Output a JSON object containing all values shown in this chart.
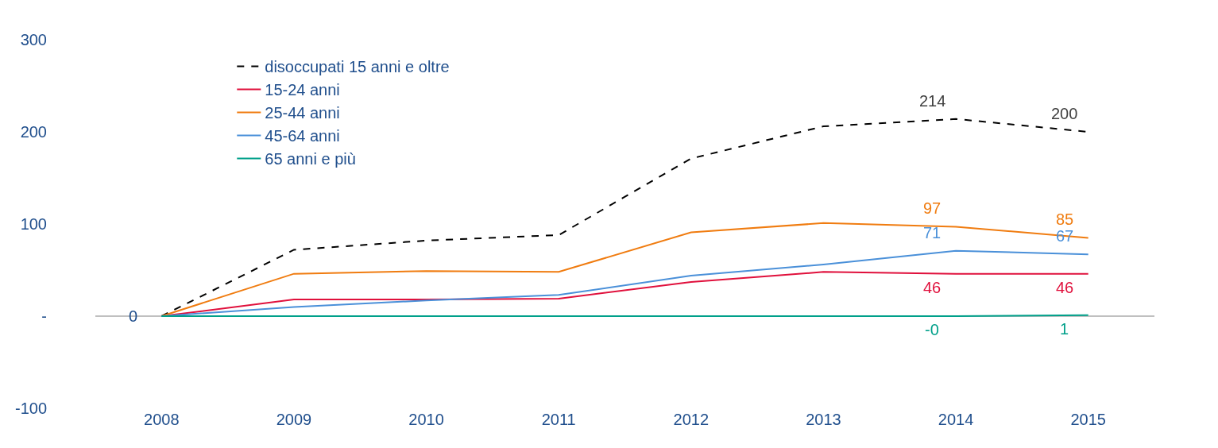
{
  "chart_data": {
    "type": "line",
    "categories": [
      "2008",
      "2009",
      "2010",
      "2011",
      "2012",
      "2013",
      "2014",
      "2015"
    ],
    "ylim": [
      -100,
      300
    ],
    "yticks": [
      {
        "value": -100,
        "label": "-100"
      },
      {
        "value": 0,
        "label": "-"
      },
      100,
      200,
      300
    ],
    "grid": false,
    "ref_lines": [
      {
        "axis": "y",
        "value": 0,
        "color": "#c0c0c0"
      }
    ],
    "legend": "top left",
    "marker": "none",
    "series": [
      {
        "name": "disoccupati 15 anni e oltre",
        "color": "#000000",
        "line_style": "dashed",
        "values": [
          0,
          72,
          82,
          88,
          171,
          206,
          214,
          200
        ],
        "value_labels": [
          "0",
          null,
          null,
          null,
          null,
          null,
          "214",
          "200"
        ]
      },
      {
        "name": "15-24 anni",
        "color": "#e0103c",
        "line_style": "solid",
        "values": [
          0,
          18,
          18,
          19,
          37,
          48,
          46,
          46
        ],
        "value_labels": [
          null,
          null,
          null,
          null,
          null,
          null,
          "46",
          "46"
        ]
      },
      {
        "name": "25-44 anni",
        "color": "#f07c10",
        "line_style": "solid",
        "values": [
          0,
          46,
          49,
          48,
          91,
          101,
          97,
          85
        ],
        "value_labels": [
          null,
          null,
          null,
          null,
          null,
          null,
          "97",
          "85"
        ]
      },
      {
        "name": "45-64 anni",
        "color": "#4a90d9",
        "line_style": "solid",
        "values": [
          0,
          10,
          17,
          23,
          44,
          56,
          71,
          67
        ],
        "value_labels": [
          null,
          null,
          null,
          null,
          null,
          null,
          "71",
          "67"
        ]
      },
      {
        "name": "65 anni e più",
        "color": "#00a08a",
        "line_style": "solid",
        "values": [
          0,
          0,
          0,
          0,
          0,
          0,
          0,
          1
        ],
        "value_labels": [
          null,
          null,
          null,
          null,
          null,
          null,
          "-0",
          "1"
        ]
      }
    ]
  }
}
